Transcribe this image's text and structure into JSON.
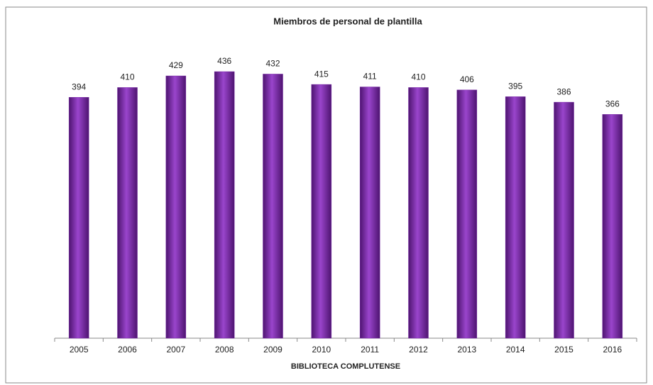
{
  "chart_data": {
    "type": "bar",
    "title": "Miembros de personal de plantilla",
    "x_label": "BIBLIOTECA COMPLUTENSE",
    "categories": [
      "2005",
      "2006",
      "2007",
      "2008",
      "2009",
      "2010",
      "2011",
      "2012",
      "2013",
      "2014",
      "2015",
      "2016"
    ],
    "values": [
      394,
      410,
      429,
      436,
      432,
      415,
      411,
      410,
      406,
      395,
      386,
      366
    ],
    "color": "#7a2ca8"
  }
}
